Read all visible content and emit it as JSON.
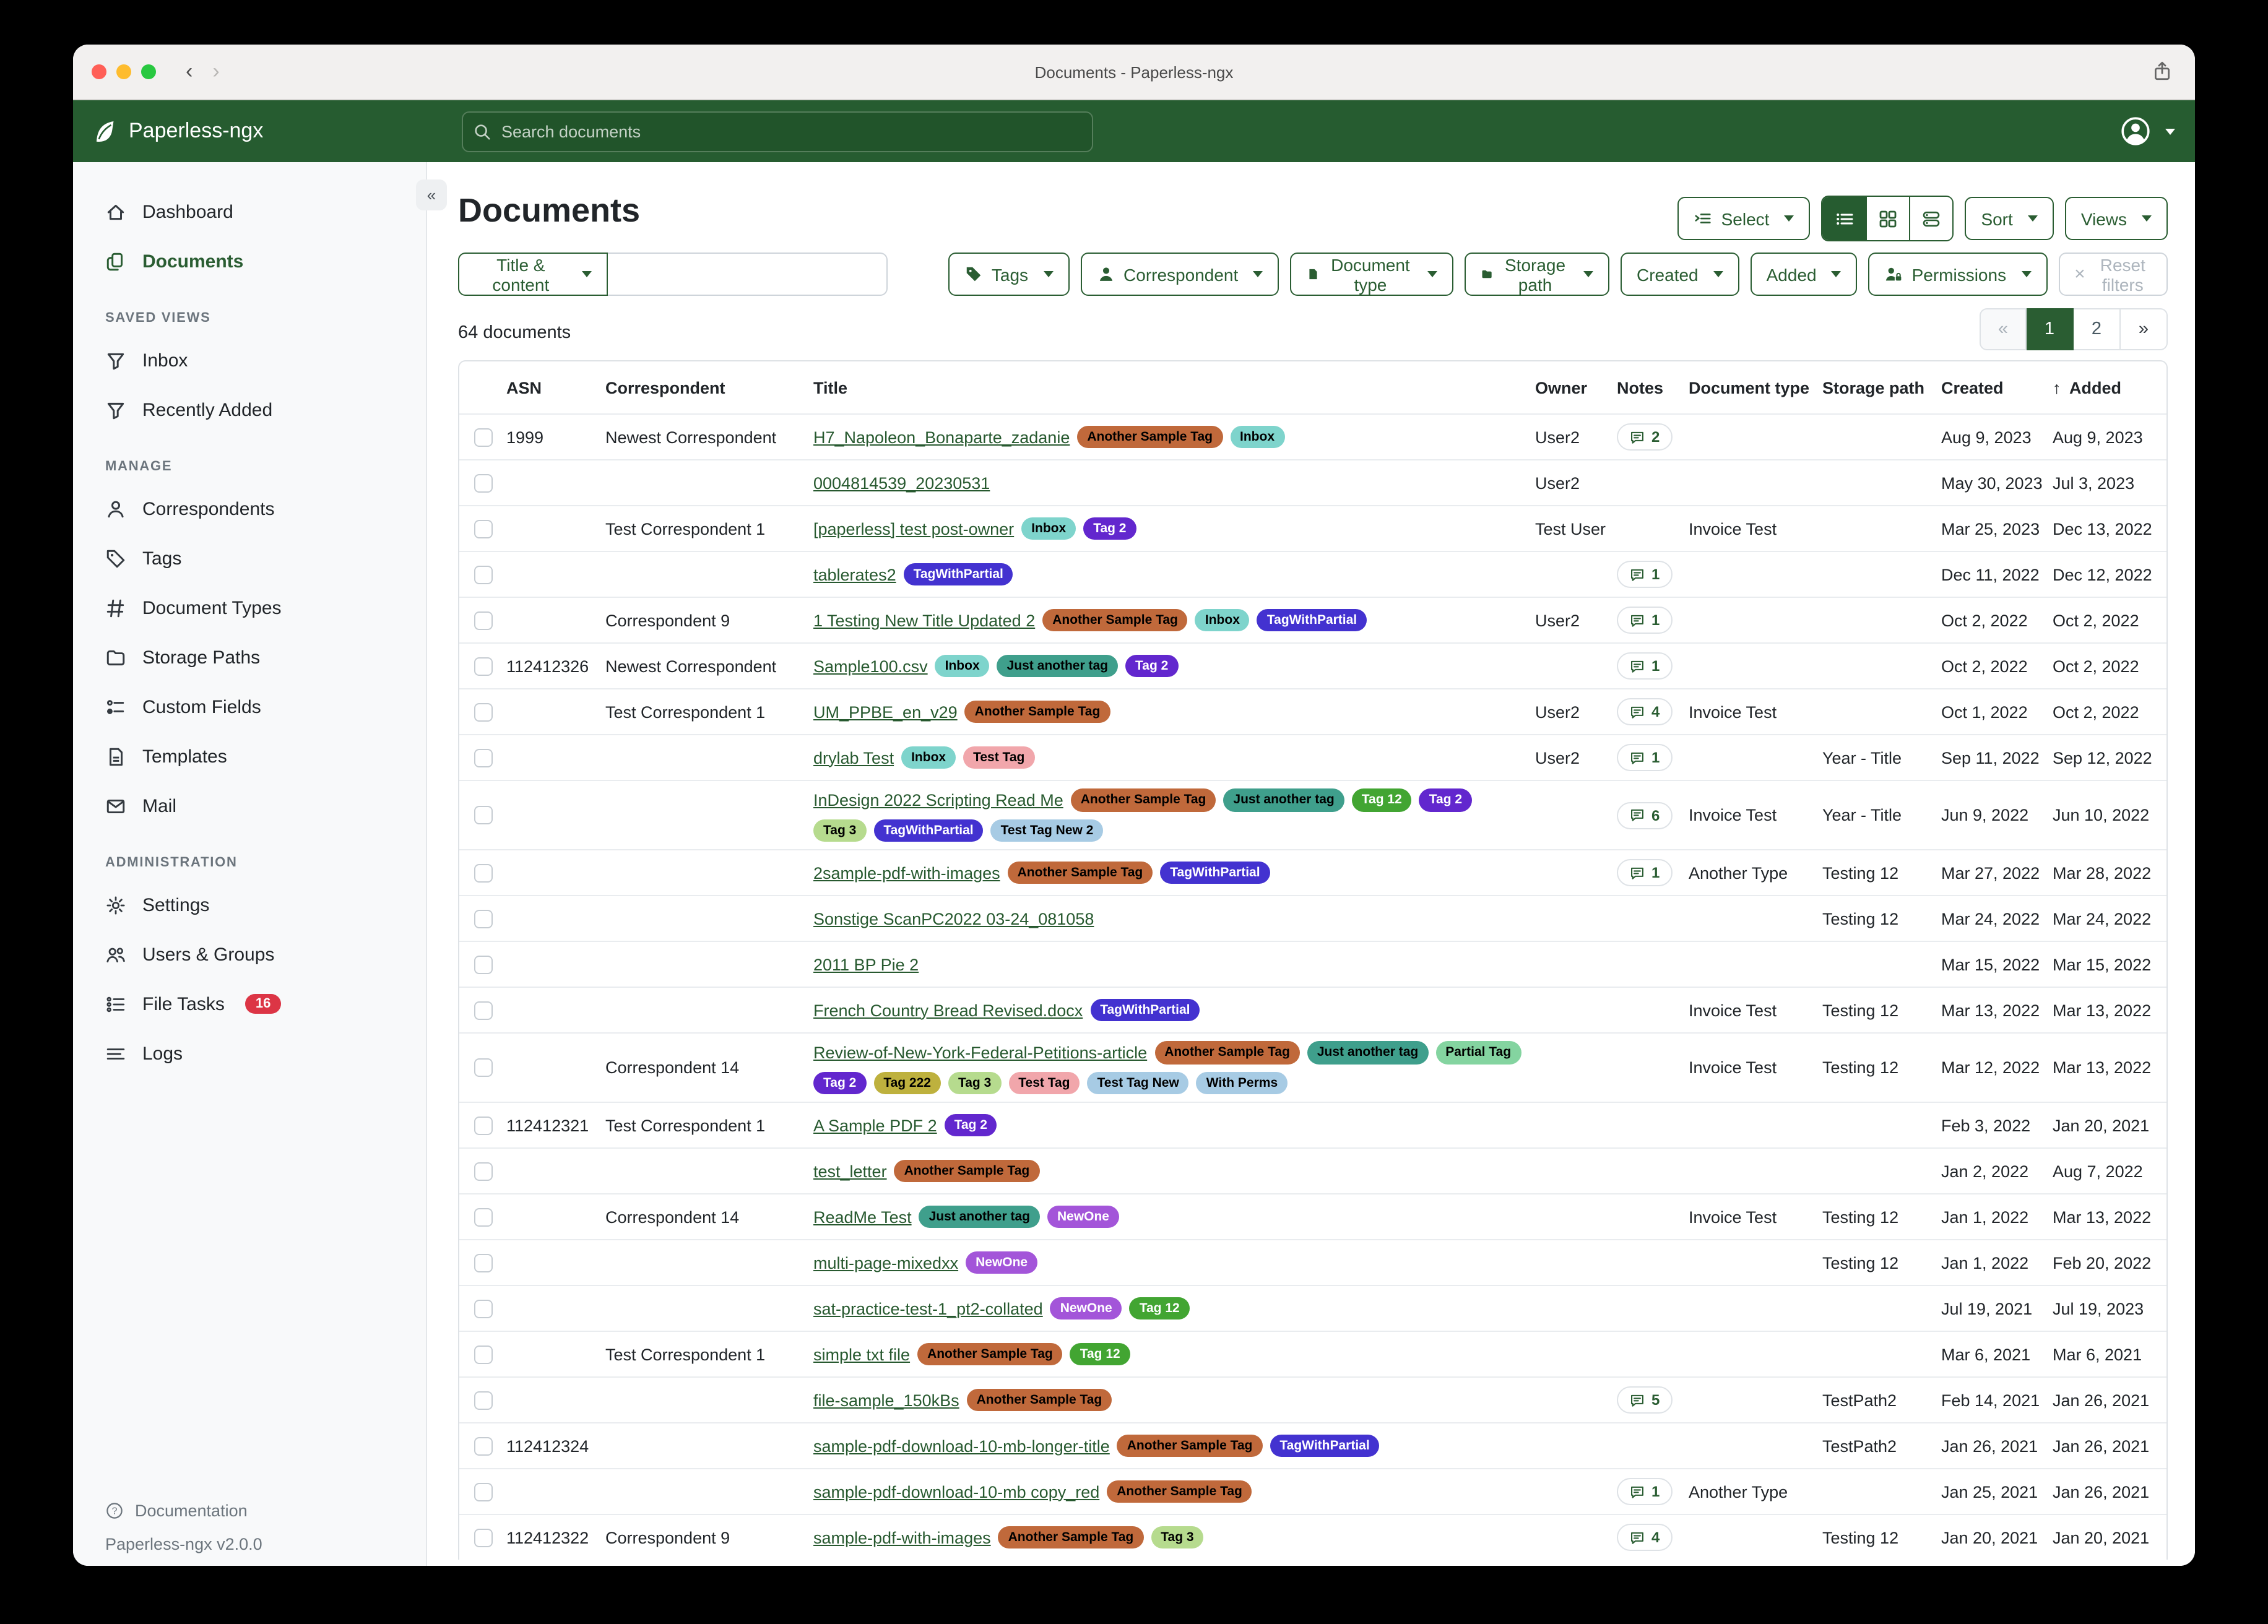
{
  "window": {
    "title": "Documents - Paperless-ngx"
  },
  "navbar": {
    "brand": "Paperless-ngx",
    "search_placeholder": "Search documents"
  },
  "sidebar": {
    "primary": [
      {
        "label": "Dashboard",
        "icon": "house",
        "active": false
      },
      {
        "label": "Documents",
        "icon": "copy",
        "active": true
      }
    ],
    "sections": [
      {
        "title": "SAVED VIEWS",
        "items": [
          {
            "label": "Inbox",
            "icon": "funnel"
          },
          {
            "label": "Recently Added",
            "icon": "funnel"
          }
        ]
      },
      {
        "title": "MANAGE",
        "items": [
          {
            "label": "Correspondents",
            "icon": "person"
          },
          {
            "label": "Tags",
            "icon": "tag"
          },
          {
            "label": "Document Types",
            "icon": "hash"
          },
          {
            "label": "Storage Paths",
            "icon": "folder"
          },
          {
            "label": "Custom Fields",
            "icon": "fields"
          },
          {
            "label": "Templates",
            "icon": "filetext"
          },
          {
            "label": "Mail",
            "icon": "envelope"
          }
        ]
      },
      {
        "title": "ADMINISTRATION",
        "items": [
          {
            "label": "Settings",
            "icon": "gear"
          },
          {
            "label": "Users & Groups",
            "icon": "people"
          },
          {
            "label": "File Tasks",
            "icon": "tasks",
            "badge": "16"
          },
          {
            "label": "Logs",
            "icon": "lines"
          }
        ]
      }
    ],
    "footer": {
      "documentation": "Documentation",
      "version": "Paperless-ngx v2.0.0"
    }
  },
  "main": {
    "title": "Documents",
    "select_label": "Select",
    "sort_label": "Sort",
    "views_label": "Views",
    "count_text": "64 documents"
  },
  "filters": {
    "title_content_label": "Title & content",
    "buttons": [
      {
        "label": "Tags",
        "icon": "tagfill"
      },
      {
        "label": "Correspondent",
        "icon": "personfill"
      },
      {
        "label": "Document type",
        "icon": "filefill"
      },
      {
        "label": "Storage path",
        "icon": "folderfill"
      },
      {
        "label": "Created",
        "icon": ""
      },
      {
        "label": "Added",
        "icon": ""
      },
      {
        "label": "Permissions",
        "icon": "personlock"
      }
    ],
    "reset_label": "Reset filters"
  },
  "pagination": {
    "first": "«",
    "pages": [
      "1",
      "2"
    ],
    "active": "1",
    "last": "»"
  },
  "table": {
    "headers": {
      "asn": "ASN",
      "correspondent": "Correspondent",
      "title": "Title",
      "owner": "Owner",
      "notes": "Notes",
      "document_type": "Document type",
      "storage_path": "Storage path",
      "created": "Created",
      "added": "Added"
    },
    "sort_indicator": "↑",
    "sorted_by": "Added"
  },
  "tag_colors": {
    "Another Sample Tag": {
      "bg": "#c0693b",
      "fg": "#000000"
    },
    "Inbox": {
      "bg": "#7ed4cc",
      "fg": "#000000"
    },
    "Tag 2": {
      "bg": "#6227ce",
      "fg": "#ffffff"
    },
    "TagWithPartial": {
      "bg": "#4332d0",
      "fg": "#ffffff"
    },
    "Just another tag": {
      "bg": "#3f9f8c",
      "fg": "#000000"
    },
    "Tag 12": {
      "bg": "#42a532",
      "fg": "#ffffff"
    },
    "Tag 3": {
      "bg": "#b6db8e",
      "fg": "#000000"
    },
    "Test Tag": {
      "bg": "#f1a6ab",
      "fg": "#000000"
    },
    "Test Tag New 2": {
      "bg": "#a7cbe4",
      "fg": "#000000"
    },
    "Test Tag New": {
      "bg": "#a7cbe4",
      "fg": "#000000"
    },
    "With Perms": {
      "bg": "#a7cbe4",
      "fg": "#000000"
    },
    "Partial Tag": {
      "bg": "#84d4a0",
      "fg": "#000000"
    },
    "Tag 222": {
      "bg": "#beb13e",
      "fg": "#000000"
    },
    "NewOne": {
      "bg": "#a355d9",
      "fg": "#ffffff"
    }
  },
  "documents": [
    {
      "asn": "1999",
      "correspondent": "Newest Correspondent",
      "title": "H7_Napoleon_Bonaparte_zadanie",
      "tags": [
        "Another Sample Tag",
        "Inbox"
      ],
      "owner": "User2",
      "notes": "2",
      "document_type": "",
      "storage_path": "",
      "created": "Aug 9, 2023",
      "added": "Aug 9, 2023"
    },
    {
      "asn": "",
      "correspondent": "",
      "title": "0004814539_20230531",
      "tags": [],
      "owner": "User2",
      "notes": "",
      "document_type": "",
      "storage_path": "",
      "created": "May 30, 2023",
      "added": "Jul 3, 2023"
    },
    {
      "asn": "",
      "correspondent": "Test Correspondent 1",
      "title": "[paperless] test post-owner",
      "tags": [
        "Inbox",
        "Tag 2"
      ],
      "owner": "Test User",
      "notes": "",
      "document_type": "Invoice Test",
      "storage_path": "",
      "created": "Mar 25, 2023",
      "added": "Dec 13, 2022"
    },
    {
      "asn": "",
      "correspondent": "",
      "title": "tablerates2",
      "tags": [
        "TagWithPartial"
      ],
      "owner": "",
      "notes": "1",
      "document_type": "",
      "storage_path": "",
      "created": "Dec 11, 2022",
      "added": "Dec 12, 2022"
    },
    {
      "asn": "",
      "correspondent": "Correspondent 9",
      "title": "1 Testing New Title Updated 2",
      "tags": [
        "Another Sample Tag",
        "Inbox",
        "TagWithPartial"
      ],
      "owner": "User2",
      "notes": "1",
      "document_type": "",
      "storage_path": "",
      "created": "Oct 2, 2022",
      "added": "Oct 2, 2022"
    },
    {
      "asn": "112412326",
      "correspondent": "Newest Correspondent",
      "title": "Sample100.csv",
      "tags": [
        "Inbox",
        "Just another tag",
        "Tag 2"
      ],
      "owner": "",
      "notes": "1",
      "document_type": "",
      "storage_path": "",
      "created": "Oct 2, 2022",
      "added": "Oct 2, 2022"
    },
    {
      "asn": "",
      "correspondent": "Test Correspondent 1",
      "title": "UM_PPBE_en_v29",
      "tags": [
        "Another Sample Tag"
      ],
      "owner": "User2",
      "notes": "4",
      "document_type": "Invoice Test",
      "storage_path": "",
      "created": "Oct 1, 2022",
      "added": "Oct 2, 2022"
    },
    {
      "asn": "",
      "correspondent": "",
      "title": "drylab Test",
      "tags": [
        "Inbox",
        "Test Tag"
      ],
      "owner": "User2",
      "notes": "1",
      "document_type": "",
      "storage_path": "Year - Title",
      "created": "Sep 11, 2022",
      "added": "Sep 12, 2022"
    },
    {
      "asn": "",
      "correspondent": "",
      "title": "InDesign 2022 Scripting Read Me",
      "tags": [
        "Another Sample Tag",
        "Just another tag",
        "Tag 12",
        "Tag 2",
        "Tag 3",
        "TagWithPartial",
        "Test Tag New 2"
      ],
      "owner": "",
      "notes": "6",
      "document_type": "Invoice Test",
      "storage_path": "Year - Title",
      "created": "Jun 9, 2022",
      "added": "Jun 10, 2022"
    },
    {
      "asn": "",
      "correspondent": "",
      "title": "2sample-pdf-with-images",
      "tags": [
        "Another Sample Tag",
        "TagWithPartial"
      ],
      "owner": "",
      "notes": "1",
      "document_type": "Another Type",
      "storage_path": "Testing 12",
      "created": "Mar 27, 2022",
      "added": "Mar 28, 2022"
    },
    {
      "asn": "",
      "correspondent": "",
      "title": "Sonstige ScanPC2022 03-24_081058",
      "tags": [],
      "owner": "",
      "notes": "",
      "document_type": "",
      "storage_path": "Testing 12",
      "created": "Mar 24, 2022",
      "added": "Mar 24, 2022"
    },
    {
      "asn": "",
      "correspondent": "",
      "title": "2011 BP Pie 2",
      "tags": [],
      "owner": "",
      "notes": "",
      "document_type": "",
      "storage_path": "",
      "created": "Mar 15, 2022",
      "added": "Mar 15, 2022"
    },
    {
      "asn": "",
      "correspondent": "",
      "title": "French Country Bread Revised.docx",
      "tags": [
        "TagWithPartial"
      ],
      "owner": "",
      "notes": "",
      "document_type": "Invoice Test",
      "storage_path": "Testing 12",
      "created": "Mar 13, 2022",
      "added": "Mar 13, 2022"
    },
    {
      "asn": "",
      "correspondent": "Correspondent 14",
      "title": "Review-of-New-York-Federal-Petitions-article",
      "tags": [
        "Another Sample Tag",
        "Just another tag",
        "Partial Tag",
        "Tag 2",
        "Tag 222",
        "Tag 3",
        "Test Tag",
        "Test Tag New",
        "With Perms"
      ],
      "owner": "",
      "notes": "",
      "document_type": "Invoice Test",
      "storage_path": "Testing 12",
      "created": "Mar 12, 2022",
      "added": "Mar 13, 2022"
    },
    {
      "asn": "112412321",
      "correspondent": "Test Correspondent 1",
      "title": "A Sample PDF 2",
      "tags": [
        "Tag 2"
      ],
      "owner": "",
      "notes": "",
      "document_type": "",
      "storage_path": "",
      "created": "Feb 3, 2022",
      "added": "Jan 20, 2021"
    },
    {
      "asn": "",
      "correspondent": "",
      "title": "test_letter",
      "tags": [
        "Another Sample Tag"
      ],
      "owner": "",
      "notes": "",
      "document_type": "",
      "storage_path": "",
      "created": "Jan 2, 2022",
      "added": "Aug 7, 2022"
    },
    {
      "asn": "",
      "correspondent": "Correspondent 14",
      "title": "ReadMe Test",
      "tags": [
        "Just another tag",
        "NewOne"
      ],
      "owner": "",
      "notes": "",
      "document_type": "Invoice Test",
      "storage_path": "Testing 12",
      "created": "Jan 1, 2022",
      "added": "Mar 13, 2022"
    },
    {
      "asn": "",
      "correspondent": "",
      "title": "multi-page-mixedxx",
      "tags": [
        "NewOne"
      ],
      "owner": "",
      "notes": "",
      "document_type": "",
      "storage_path": "Testing 12",
      "created": "Jan 1, 2022",
      "added": "Feb 20, 2022"
    },
    {
      "asn": "",
      "correspondent": "",
      "title": "sat-practice-test-1_pt2-collated",
      "tags": [
        "NewOne",
        "Tag 12"
      ],
      "owner": "",
      "notes": "",
      "document_type": "",
      "storage_path": "",
      "created": "Jul 19, 2021",
      "added": "Jul 19, 2023"
    },
    {
      "asn": "",
      "correspondent": "Test Correspondent 1",
      "title": "simple txt file",
      "tags": [
        "Another Sample Tag",
        "Tag 12"
      ],
      "owner": "",
      "notes": "",
      "document_type": "",
      "storage_path": "",
      "created": "Mar 6, 2021",
      "added": "Mar 6, 2021"
    },
    {
      "asn": "",
      "correspondent": "",
      "title": "file-sample_150kBs",
      "tags": [
        "Another Sample Tag"
      ],
      "owner": "",
      "notes": "5",
      "document_type": "",
      "storage_path": "TestPath2",
      "created": "Feb 14, 2021",
      "added": "Jan 26, 2021"
    },
    {
      "asn": "112412324",
      "correspondent": "",
      "title": "sample-pdf-download-10-mb-longer-title",
      "tags": [
        "Another Sample Tag",
        "TagWithPartial"
      ],
      "owner": "",
      "notes": "",
      "document_type": "",
      "storage_path": "TestPath2",
      "created": "Jan 26, 2021",
      "added": "Jan 26, 2021"
    },
    {
      "asn": "",
      "correspondent": "",
      "title": "sample-pdf-download-10-mb copy_red",
      "tags": [
        "Another Sample Tag"
      ],
      "owner": "",
      "notes": "1",
      "document_type": "Another Type",
      "storage_path": "",
      "created": "Jan 25, 2021",
      "added": "Jan 26, 2021"
    },
    {
      "asn": "112412322",
      "correspondent": "Correspondent 9",
      "title": "sample-pdf-with-images",
      "tags": [
        "Another Sample Tag",
        "Tag 3"
      ],
      "owner": "",
      "notes": "4",
      "document_type": "",
      "storage_path": "Testing 12",
      "created": "Jan 20, 2021",
      "added": "Jan 20, 2021"
    }
  ]
}
